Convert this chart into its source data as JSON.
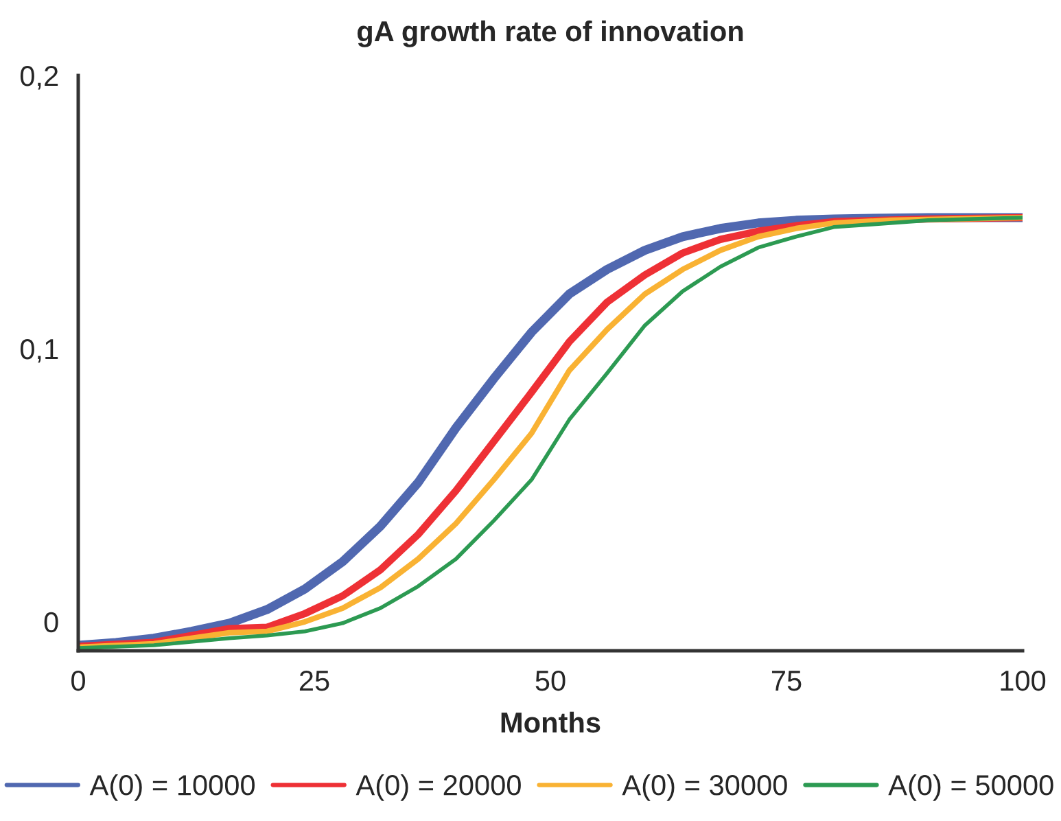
{
  "chart_data": {
    "type": "line",
    "title": "gA growth rate of innovation",
    "xlabel": "Months",
    "xlim": [
      0,
      100
    ],
    "xticks": [
      0,
      25,
      50,
      75,
      100
    ],
    "ylim": [
      -0.0106,
      0.2
    ],
    "yticks": [
      {
        "value": 0,
        "label": "0"
      },
      {
        "value": 0.1,
        "label": "0,1"
      },
      {
        "value": 0.2,
        "label": "0,2"
      }
    ],
    "grid": false,
    "legend": "bottom",
    "marker": "none",
    "line_style": "solid",
    "series": [
      {
        "name": "A(0) = 10000",
        "color": "#5068b0",
        "x": [
          0,
          4,
          8,
          12,
          16,
          20,
          24,
          28,
          32,
          36,
          40,
          44,
          48,
          52,
          56,
          60,
          64,
          68,
          72,
          76,
          80,
          90,
          100
        ],
        "values": [
          -0.0086,
          -0.0076,
          -0.006,
          -0.0035,
          -0.0005,
          0.0045,
          0.012,
          0.022,
          0.035,
          0.051,
          0.071,
          0.089,
          0.106,
          0.12,
          0.129,
          0.136,
          0.141,
          0.144,
          0.146,
          0.147,
          0.1475,
          0.148,
          0.148
        ]
      },
      {
        "name": "A(0) = 20000",
        "color": "#ee3035",
        "x": [
          0,
          8,
          16,
          20,
          24,
          28,
          32,
          36,
          40,
          44,
          48,
          52,
          56,
          60,
          64,
          68,
          72,
          76,
          80,
          90,
          100
        ],
        "values": [
          -0.009,
          -0.0075,
          -0.0025,
          -0.002,
          0.003,
          0.0095,
          0.019,
          0.032,
          0.048,
          0.066,
          0.084,
          0.1025,
          0.117,
          0.127,
          0.135,
          0.14,
          0.143,
          0.145,
          0.1465,
          0.1475,
          0.148
        ]
      },
      {
        "name": "A(0) = 30000",
        "color": "#f9b233",
        "x": [
          0,
          8,
          16,
          20,
          24,
          28,
          32,
          36,
          40,
          44,
          48,
          52,
          56,
          60,
          64,
          68,
          72,
          76,
          80,
          86,
          100
        ],
        "values": [
          -0.0093,
          -0.008,
          -0.004,
          -0.0035,
          0.0,
          0.005,
          0.0125,
          0.023,
          0.036,
          0.052,
          0.069,
          0.092,
          0.107,
          0.12,
          0.129,
          0.136,
          0.141,
          0.144,
          0.146,
          0.147,
          0.148
        ]
      },
      {
        "name": "A(0) = 50000",
        "color": "#2c9a52",
        "x": [
          0,
          8,
          16,
          20,
          24,
          28,
          32,
          36,
          40,
          44,
          48,
          52,
          56,
          60,
          64,
          68,
          72,
          76,
          80,
          84,
          90,
          100
        ],
        "values": [
          -0.0096,
          -0.0086,
          -0.006,
          -0.005,
          -0.0035,
          -0.0005,
          0.005,
          0.013,
          0.023,
          0.037,
          0.052,
          0.074,
          0.091,
          0.1085,
          0.121,
          0.13,
          0.137,
          0.141,
          0.1445,
          0.1455,
          0.147,
          0.148
        ]
      }
    ]
  }
}
